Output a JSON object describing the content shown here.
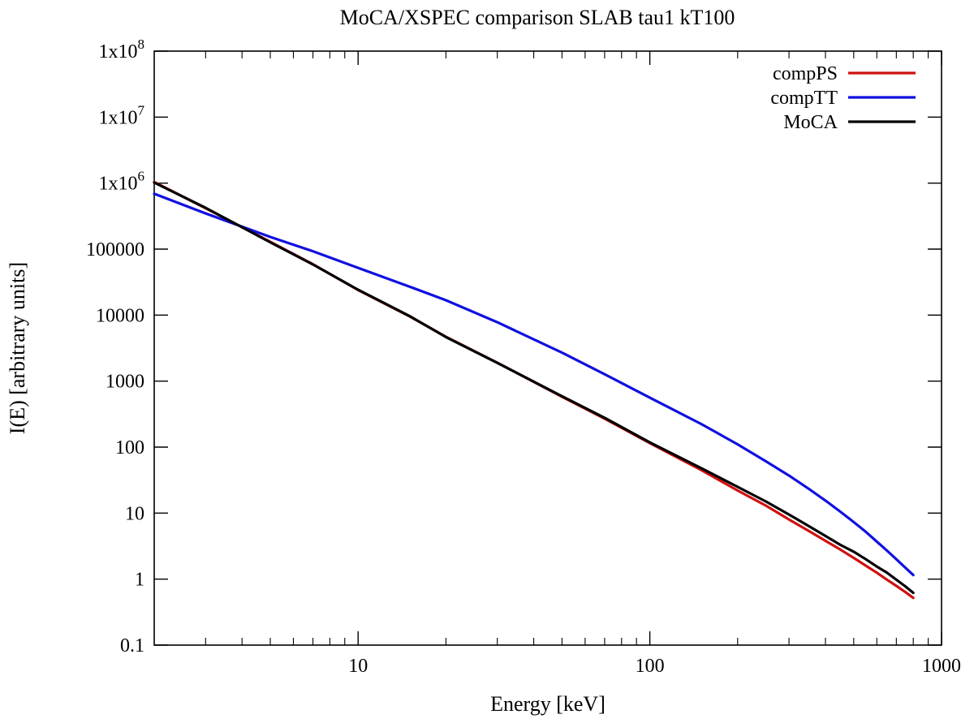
{
  "chart_data": {
    "type": "line",
    "title": "MoCA/XSPEC comparison SLAB tau1 kT100",
    "xlabel": "Energy [keV]",
    "ylabel": "I(E) [arbitrary units]",
    "x_scale": "log",
    "y_scale": "log",
    "xlim": [
      2,
      1000
    ],
    "ylim": [
      0.1,
      100000000
    ],
    "x_ticks": [
      {
        "value": 10,
        "label": "10"
      },
      {
        "value": 100,
        "label": "100"
      },
      {
        "value": 1000,
        "label": "1000"
      }
    ],
    "y_ticks": [
      {
        "value": 0.1,
        "label": "0.1",
        "sup": ""
      },
      {
        "value": 1,
        "label": "1",
        "sup": ""
      },
      {
        "value": 10,
        "label": "10",
        "sup": ""
      },
      {
        "value": 100,
        "label": "100",
        "sup": ""
      },
      {
        "value": 1000,
        "label": "1000",
        "sup": ""
      },
      {
        "value": 10000,
        "label": "10000",
        "sup": ""
      },
      {
        "value": 100000,
        "label": "100000",
        "sup": ""
      },
      {
        "value": 1000000,
        "label": "1x10",
        "sup": "6"
      },
      {
        "value": 10000000,
        "label": "1x10",
        "sup": "7"
      },
      {
        "value": 100000000,
        "label": "1x10",
        "sup": "8"
      }
    ],
    "grid": false,
    "legend_position": "top-right",
    "series": [
      {
        "name": "compPS",
        "color": "#d01010",
        "x": [
          2,
          3,
          5,
          7,
          10,
          15,
          20,
          30,
          50,
          70,
          100,
          150,
          200,
          250,
          300,
          350,
          400,
          450,
          500,
          550,
          600,
          650,
          700,
          750,
          800
        ],
        "y": [
          1040000,
          417000,
          129000,
          59000,
          24000,
          9600,
          4700,
          1900,
          580,
          270,
          115,
          45,
          22,
          13,
          8,
          5.4,
          3.8,
          2.8,
          2.1,
          1.6,
          1.25,
          0.98,
          0.79,
          0.64,
          0.52
        ]
      },
      {
        "name": "compTT",
        "color": "#1010e0",
        "x": [
          2,
          3,
          5,
          7,
          10,
          15,
          20,
          30,
          50,
          70,
          100,
          150,
          200,
          250,
          300,
          350,
          400,
          450,
          500,
          550,
          600,
          650,
          700,
          750,
          800
        ],
        "y": [
          690000,
          348000,
          153000,
          93000,
          52000,
          27000,
          16800,
          7800,
          2700,
          1270,
          560,
          224,
          110,
          61,
          37,
          23.5,
          15.5,
          10.5,
          7.3,
          5.2,
          3.7,
          2.7,
          2.0,
          1.5,
          1.15
        ]
      },
      {
        "name": "MoCA",
        "color": "#000000",
        "x": [
          2,
          3,
          5,
          7,
          10,
          15,
          20,
          30,
          50,
          70,
          100,
          150,
          200,
          250,
          300,
          350,
          400,
          450,
          500,
          550,
          600,
          650,
          700,
          750,
          800
        ],
        "y": [
          1020000,
          423000,
          127000,
          58500,
          24200,
          9700,
          4650,
          1890,
          590,
          278,
          118,
          48,
          25,
          15,
          9.5,
          6.4,
          4.5,
          3.3,
          2.6,
          2.0,
          1.55,
          1.25,
          0.98,
          0.78,
          0.62
        ]
      }
    ]
  }
}
